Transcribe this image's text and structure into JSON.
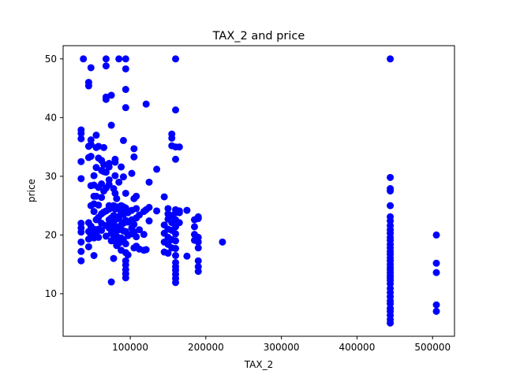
{
  "chart_data": {
    "type": "scatter",
    "title": "TAX_2 and price",
    "xlabel": "TAX_2",
    "ylabel": "price",
    "xlim": [
      11200,
      529000
    ],
    "ylim": [
      2.75,
      52.25
    ],
    "xticks": [
      100000,
      200000,
      300000,
      400000,
      500000
    ],
    "xtick_labels": [
      "100000",
      "200000",
      "300000",
      "400000",
      "500000"
    ],
    "yticks": [
      10,
      20,
      30,
      40,
      50
    ],
    "ytick_labels": [
      "10",
      "20",
      "30",
      "40",
      "50"
    ],
    "grid": false,
    "marker_color": "#0000ff",
    "series": [
      {
        "points": [
          [
            35000,
            15.6
          ],
          [
            35000,
            17.2
          ],
          [
            35000,
            18.8
          ],
          [
            35000,
            20.5
          ],
          [
            35000,
            21.2
          ],
          [
            35000,
            22.0
          ],
          [
            35000,
            29.6
          ],
          [
            35000,
            32.5
          ],
          [
            35000,
            36.4
          ],
          [
            35000,
            37.3
          ],
          [
            35000,
            37.9
          ],
          [
            38000,
            50.0
          ],
          [
            45000,
            18.0
          ],
          [
            45000,
            19.3
          ],
          [
            45000,
            20.6
          ],
          [
            45000,
            22.1
          ],
          [
            45000,
            33.2
          ],
          [
            45000,
            35.1
          ],
          [
            45000,
            45.4
          ],
          [
            45000,
            46.0
          ],
          [
            48000,
            20.0
          ],
          [
            48000,
            21.5
          ],
          [
            48000,
            25.0
          ],
          [
            48000,
            28.4
          ],
          [
            48000,
            33.4
          ],
          [
            48000,
            35.4
          ],
          [
            48000,
            36.2
          ],
          [
            48000,
            48.5
          ],
          [
            52000,
            16.5
          ],
          [
            52000,
            19.5
          ],
          [
            52000,
            20.2
          ],
          [
            52000,
            20.8
          ],
          [
            52000,
            21.0
          ],
          [
            52000,
            24.0
          ],
          [
            52000,
            25.3
          ],
          [
            52000,
            26.6
          ],
          [
            52000,
            28.5
          ],
          [
            52000,
            30.1
          ],
          [
            55000,
            20.1
          ],
          [
            55000,
            22.6
          ],
          [
            55000,
            26.6
          ],
          [
            55000,
            31.5
          ],
          [
            55000,
            34.9
          ],
          [
            55000,
            37.0
          ],
          [
            58000,
            19.6
          ],
          [
            58000,
            21.0
          ],
          [
            58000,
            23.0
          ],
          [
            58000,
            25.1
          ],
          [
            58000,
            28.1
          ],
          [
            58000,
            33.1
          ],
          [
            58000,
            35.1
          ],
          [
            62000,
            20.8
          ],
          [
            62000,
            22.0
          ],
          [
            62000,
            23.6
          ],
          [
            62000,
            26.4
          ],
          [
            62000,
            28.7
          ],
          [
            62000,
            31.0
          ],
          [
            62000,
            32.7
          ],
          [
            65000,
            23.9
          ],
          [
            65000,
            27.5
          ],
          [
            65000,
            30.8
          ],
          [
            65000,
            32.0
          ],
          [
            65000,
            34.9
          ],
          [
            68000,
            19.8
          ],
          [
            68000,
            21.6
          ],
          [
            68000,
            24.1
          ],
          [
            68000,
            28.0
          ],
          [
            68000,
            30.7
          ],
          [
            68000,
            43.1
          ],
          [
            68000,
            43.5
          ],
          [
            68000,
            48.8
          ],
          [
            68000,
            50.0
          ],
          [
            72000,
            21.2
          ],
          [
            72000,
            22.6
          ],
          [
            72000,
            24.4
          ],
          [
            72000,
            25.0
          ],
          [
            72000,
            28.6
          ],
          [
            72000,
            29.4
          ],
          [
            72000,
            31.6
          ],
          [
            72000,
            32.2
          ],
          [
            75000,
            12.0
          ],
          [
            75000,
            19.0
          ],
          [
            75000,
            20.3
          ],
          [
            75000,
            21.7
          ],
          [
            75000,
            22.9
          ],
          [
            75000,
            24.7
          ],
          [
            75000,
            38.7
          ],
          [
            75000,
            43.8
          ],
          [
            78000,
            16.0
          ],
          [
            78000,
            19.4
          ],
          [
            78000,
            21.0
          ],
          [
            78000,
            22.2
          ],
          [
            78000,
            23.3
          ],
          [
            78000,
            25.0
          ],
          [
            78000,
            27.9
          ],
          [
            80000,
            18.9
          ],
          [
            80000,
            20.5
          ],
          [
            80000,
            22.6
          ],
          [
            80000,
            24.4
          ],
          [
            80000,
            27.1
          ],
          [
            80000,
            30.1
          ],
          [
            80000,
            32.4
          ],
          [
            80000,
            32.9
          ],
          [
            82000,
            18.2
          ],
          [
            82000,
            19.8
          ],
          [
            82000,
            21.4
          ],
          [
            82000,
            23.1
          ],
          [
            82000,
            24.8
          ],
          [
            82000,
            26.2
          ],
          [
            85000,
            18.6
          ],
          [
            85000,
            20.9
          ],
          [
            85000,
            22.8
          ],
          [
            85000,
            24.5
          ],
          [
            85000,
            29.0
          ],
          [
            85000,
            50.0
          ],
          [
            88000,
            17.4
          ],
          [
            88000,
            19.5
          ],
          [
            88000,
            21.7
          ],
          [
            88000,
            23.9
          ],
          [
            88000,
            25.0
          ],
          [
            88000,
            31.6
          ],
          [
            91000,
            19.1
          ],
          [
            91000,
            20.7
          ],
          [
            91000,
            22.0
          ],
          [
            91000,
            23.5
          ],
          [
            91000,
            24.8
          ],
          [
            91000,
            29.9
          ],
          [
            91000,
            36.1
          ],
          [
            94000,
            12.7
          ],
          [
            94000,
            13.4
          ],
          [
            94000,
            14.1
          ],
          [
            94000,
            14.9
          ],
          [
            94000,
            15.6
          ],
          [
            94000,
            17.0
          ],
          [
            94000,
            18.5
          ],
          [
            94000,
            20.6
          ],
          [
            94000,
            22.5
          ],
          [
            94000,
            24.6
          ],
          [
            94000,
            27.1
          ],
          [
            94000,
            41.7
          ],
          [
            94000,
            44.8
          ],
          [
            94000,
            48.3
          ],
          [
            94000,
            50.0
          ],
          [
            97000,
            16.6
          ],
          [
            97000,
            19.9
          ],
          [
            97000,
            22.2
          ],
          [
            97000,
            23.8
          ],
          [
            102000,
            20.2
          ],
          [
            102000,
            21.2
          ],
          [
            102000,
            22.6
          ],
          [
            102000,
            24.2
          ],
          [
            102000,
            30.5
          ],
          [
            105000,
            17.8
          ],
          [
            105000,
            20.5
          ],
          [
            105000,
            21.8
          ],
          [
            105000,
            26.2
          ],
          [
            105000,
            33.3
          ],
          [
            105000,
            34.7
          ],
          [
            108000,
            18.1
          ],
          [
            108000,
            19.7
          ],
          [
            108000,
            22.9
          ],
          [
            108000,
            24.5
          ],
          [
            108000,
            26.6
          ],
          [
            112000,
            17.6
          ],
          [
            112000,
            20.9
          ],
          [
            112000,
            23.4
          ],
          [
            118000,
            17.4
          ],
          [
            118000,
            20.1
          ],
          [
            118000,
            24.0
          ],
          [
            121000,
            17.5
          ],
          [
            121000,
            24.3
          ],
          [
            121000,
            42.3
          ],
          [
            125000,
            22.4
          ],
          [
            125000,
            24.7
          ],
          [
            125000,
            29.0
          ],
          [
            135000,
            24.1
          ],
          [
            135000,
            31.2
          ],
          [
            145000,
            17.1
          ],
          [
            145000,
            18.8
          ],
          [
            145000,
            20.3
          ],
          [
            145000,
            21.7
          ],
          [
            145000,
            26.5
          ],
          [
            150000,
            16.9
          ],
          [
            150000,
            18.4
          ],
          [
            150000,
            19.6
          ],
          [
            150000,
            21.0
          ],
          [
            150000,
            22.7
          ],
          [
            150000,
            23.6
          ],
          [
            150000,
            24.5
          ],
          [
            155000,
            17.8
          ],
          [
            155000,
            19.2
          ],
          [
            155000,
            20.8
          ],
          [
            155000,
            22.1
          ],
          [
            155000,
            23.3
          ],
          [
            155000,
            35.2
          ],
          [
            155000,
            36.5
          ],
          [
            155000,
            37.2
          ],
          [
            160000,
            11.9
          ],
          [
            160000,
            12.6
          ],
          [
            160000,
            13.3
          ],
          [
            160000,
            14.0
          ],
          [
            160000,
            14.6
          ],
          [
            160000,
            15.3
          ],
          [
            160000,
            16.5
          ],
          [
            160000,
            17.7
          ],
          [
            160000,
            19.0
          ],
          [
            160000,
            20.2
          ],
          [
            160000,
            21.4
          ],
          [
            160000,
            22.6
          ],
          [
            160000,
            23.8
          ],
          [
            160000,
            24.3
          ],
          [
            160000,
            32.9
          ],
          [
            160000,
            35.0
          ],
          [
            160000,
            41.3
          ],
          [
            160000,
            50.0
          ],
          [
            165000,
            22.1
          ],
          [
            165000,
            23.8
          ],
          [
            165000,
            24.1
          ],
          [
            165000,
            35.0
          ],
          [
            175000,
            16.4
          ],
          [
            175000,
            24.2
          ],
          [
            185000,
            19.1
          ],
          [
            185000,
            20.1
          ],
          [
            185000,
            21.4
          ],
          [
            185000,
            22.6
          ],
          [
            190000,
            13.8
          ],
          [
            190000,
            14.6
          ],
          [
            190000,
            15.6
          ],
          [
            190000,
            17.8
          ],
          [
            190000,
            18.8
          ],
          [
            190000,
            19.6
          ],
          [
            190000,
            22.8
          ],
          [
            190000,
            23.1
          ],
          [
            222000,
            18.8
          ],
          [
            444000,
            5.0
          ],
          [
            444000,
            5.6
          ],
          [
            444000,
            6.3
          ],
          [
            444000,
            7.0
          ],
          [
            444000,
            7.5
          ],
          [
            444000,
            8.3
          ],
          [
            444000,
            8.8
          ],
          [
            444000,
            9.5
          ],
          [
            444000,
            10.2
          ],
          [
            444000,
            10.9
          ],
          [
            444000,
            11.7
          ],
          [
            444000,
            12.3
          ],
          [
            444000,
            12.7
          ],
          [
            444000,
            13.1
          ],
          [
            444000,
            13.6
          ],
          [
            444000,
            14.1
          ],
          [
            444000,
            14.5
          ],
          [
            444000,
            15.0
          ],
          [
            444000,
            15.6
          ],
          [
            444000,
            16.1
          ],
          [
            444000,
            16.7
          ],
          [
            444000,
            17.2
          ],
          [
            444000,
            17.8
          ],
          [
            444000,
            18.4
          ],
          [
            444000,
            19.1
          ],
          [
            444000,
            19.6
          ],
          [
            444000,
            20.3
          ],
          [
            444000,
            20.9
          ],
          [
            444000,
            21.6
          ],
          [
            444000,
            22.4
          ],
          [
            444000,
            23.1
          ],
          [
            444000,
            25.0
          ],
          [
            444000,
            27.5
          ],
          [
            444000,
            27.9
          ],
          [
            444000,
            29.8
          ],
          [
            444000,
            50.0
          ],
          [
            505000,
            7.0
          ],
          [
            505000,
            8.1
          ],
          [
            505000,
            13.6
          ],
          [
            505000,
            15.2
          ],
          [
            505000,
            20.0
          ]
        ]
      }
    ]
  }
}
